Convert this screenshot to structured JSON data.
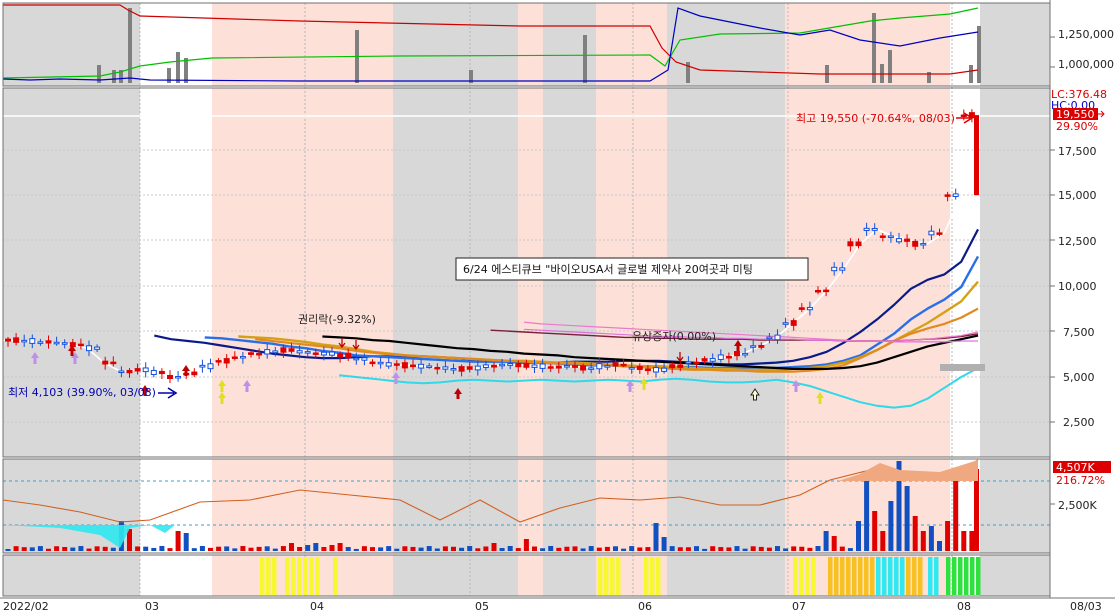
{
  "chart_data": {
    "type": "candlestick",
    "x_axis": {
      "start_label": "2022/02",
      "month_labels": [
        "03",
        "04",
        "05",
        "06",
        "07",
        "08"
      ],
      "end_label": "08/03"
    },
    "top_panel": {
      "ticks": [
        "1,250,000",
        "1,000,000"
      ]
    },
    "price_panel": {
      "ticks": [
        "17,500",
        "15,000",
        "12,500",
        "10,000",
        "7,500",
        "5,000",
        "2,500"
      ],
      "lc_label": "LC:376.48",
      "hc_label": "HC:0.00",
      "last_price_label": "19,550",
      "last_change_label": "29.90%",
      "high_label": "최고 19,550 (-70.64%, 08/03)",
      "low_label": "최저 4,103 (39.90%, 03/08)",
      "news_label": "6/24 에스티큐브  \"바이오USA서 글로벌 제약사 20여곳과 미팅",
      "event_right_drop": "권리락(-9.32%)",
      "event_rights_stop": "유상증자(0.00%)",
      "series": [
        {
          "y": [
            7050,
            7000,
            6950,
            6900,
            6800,
            6600,
            5800,
            5300,
            5400,
            5250,
            5000,
            5200,
            5600,
            5900,
            6100,
            6300,
            6400,
            6500,
            6400,
            6300,
            6200,
            6000,
            5800,
            5700,
            5650,
            5600,
            5500,
            5450,
            5500,
            5600,
            5700,
            5650,
            5600,
            5550,
            5600,
            5500,
            5600,
            5700,
            5500,
            5400,
            5600,
            5800,
            5950,
            6100,
            6300,
            6700,
            7200,
            8000,
            8800,
            9800,
            11000,
            12400,
            13200,
            12800,
            12600,
            12400,
            13000,
            15100,
            19550
          ]
        },
        {
          "y": [
            7300,
            7100,
            7000,
            6900,
            6750,
            6600,
            6450,
            6300,
            6200,
            6100,
            6050,
            6050,
            6100,
            6150,
            6150,
            6150,
            6150,
            6100,
            6050,
            5950,
            5900,
            5850,
            5800,
            5800,
            5800,
            5850,
            5850,
            5850,
            5900,
            5900,
            5900,
            5850,
            5800,
            5750,
            5700,
            5700,
            5750,
            5800,
            5900,
            6100,
            6400,
            6900,
            7500,
            8200,
            9000,
            9900,
            10400,
            10700,
            11400,
            13200
          ]
        },
        {
          "y": [
            7200,
            7150,
            7050,
            6950,
            6850,
            6700,
            6600,
            6450,
            6350,
            6200,
            6150,
            6100,
            6050,
            6000,
            5950,
            5900,
            5850,
            5850,
            5850,
            5850,
            5800,
            5750,
            5700,
            5650,
            5650,
            5600,
            5550,
            5550,
            5550,
            5550,
            5500,
            5500,
            5500,
            5500,
            5500,
            5550,
            5600,
            5700,
            5900,
            6200,
            6800,
            7400,
            8200,
            8800,
            9300,
            10000,
            11700
          ]
        },
        {
          "y": [
            7250,
            7200,
            7150,
            7050,
            6950,
            6800,
            6700,
            6550,
            6400,
            6300,
            6200,
            6150,
            6100,
            6050,
            6000,
            5950,
            5900,
            5900,
            5850,
            5800,
            5800,
            5750,
            5700,
            5650,
            5600,
            5600,
            5550,
            5500,
            5450,
            5450,
            5400,
            5400,
            5400,
            5450,
            5500,
            5600,
            5800,
            6100,
            6500,
            7000,
            7500,
            8000,
            8600,
            9200,
            10300
          ]
        },
        {
          "y": [
            7100,
            7000,
            6900,
            6800,
            6700,
            6600,
            6450,
            6350,
            6250,
            6200,
            6150,
            6100,
            6050,
            6000,
            5950,
            5900,
            5850,
            5800,
            5750,
            5750,
            5700,
            5650,
            5600,
            5550,
            5500,
            5450,
            5400,
            5400,
            5350,
            5350,
            5300,
            5300,
            5300,
            5350,
            5450,
            5650,
            6050,
            6500,
            7000,
            7400,
            7700,
            7950,
            8300,
            8800
          ]
        },
        {
          "y": [
            7250,
            7200,
            7150,
            7050,
            7000,
            6900,
            6800,
            6700,
            6600,
            6550,
            6450,
            6400,
            6300,
            6250,
            6200,
            6100,
            6050,
            6000,
            5950,
            5900,
            5850,
            5800,
            5750,
            5700,
            5650,
            5600,
            5550,
            5500,
            5450,
            5450,
            5450,
            5500,
            5600,
            5800,
            6100,
            6400,
            6700,
            6900,
            7100,
            7300
          ]
        },
        {
          "y": [
            7600,
            7550,
            7500,
            7450,
            7400,
            7350,
            7300,
            7250,
            7200,
            7200,
            7150,
            7150,
            7100,
            7100,
            7100,
            7100,
            7050,
            7050,
            7050,
            7050,
            7050,
            7000,
            7000,
            7000,
            7000,
            7050,
            7100,
            7150,
            7250,
            7400
          ]
        },
        {
          "y": [
            7650,
            7600,
            7550,
            7500,
            7450,
            7400,
            7350,
            7300,
            7250,
            7250,
            7200,
            7200,
            7150,
            7150,
            7100,
            7100,
            7100,
            7050,
            7050,
            7000,
            7000,
            7000,
            6950,
            6950,
            6950,
            6950,
            7000,
            7000
          ]
        },
        {
          "y": [
            8050,
            7950,
            7900,
            7850,
            7800,
            7750,
            7700,
            7650,
            7600,
            7550,
            7500,
            7450,
            7400,
            7350,
            7300,
            7250,
            7200,
            7150,
            7100,
            7050,
            7000,
            7000,
            7000,
            7050,
            7100,
            7200,
            7300,
            7500
          ]
        },
        {
          "y": [
            5100,
            5000,
            4900,
            4800,
            4700,
            4650,
            4700,
            4800,
            4850,
            4800,
            4750,
            4800,
            4850,
            4800,
            4750,
            4800,
            4850,
            4800,
            4750,
            4850,
            4900,
            4850,
            4750,
            4700,
            4700,
            4750,
            4850,
            4700,
            4500,
            4200,
            3900,
            3600,
            3400,
            3300,
            3400,
            3800,
            4400,
            5000,
            5500
          ]
        }
      ]
    },
    "volume_panel": {
      "tick": "2,500K",
      "last_volume_label": "4,507K",
      "last_ratio_label": "216.72%"
    }
  }
}
